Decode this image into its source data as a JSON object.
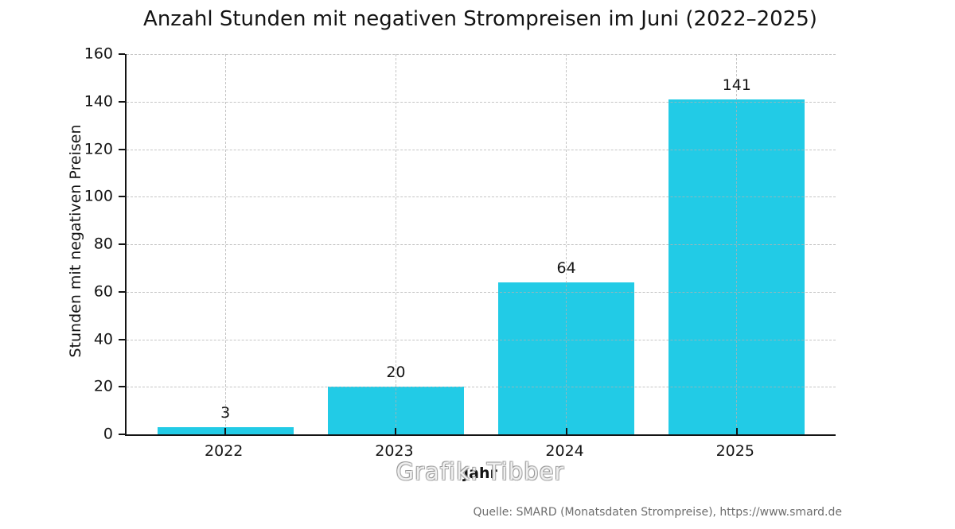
{
  "page": {
    "background": "#ffffff"
  },
  "chart_data": {
    "type": "bar",
    "title": "Anzahl Stunden mit negativen Strompreisen im Juni (2022–2025)",
    "xlabel": "Jahr",
    "ylabel": "Stunden mit negativen Preisen",
    "categories": [
      "2022",
      "2023",
      "2024",
      "2025"
    ],
    "values": [
      3,
      20,
      64,
      141
    ],
    "value_labels": [
      "3",
      "20",
      "64",
      "141"
    ],
    "yticks": [
      0,
      20,
      40,
      60,
      80,
      100,
      120,
      140,
      160
    ],
    "ylim": [
      0,
      160
    ],
    "grid": "dashed, horizontal and vertical",
    "legend": "none",
    "bar_color": "#22cbe6",
    "grid_color": "rgba(178,178,178,0.75)",
    "axis_color": "#141414"
  },
  "watermark": {
    "text": "Grafik: Tibber"
  },
  "footer": {
    "source": "Quelle: SMARD (Monatsdaten Strompreise), https://www.smard.de"
  }
}
